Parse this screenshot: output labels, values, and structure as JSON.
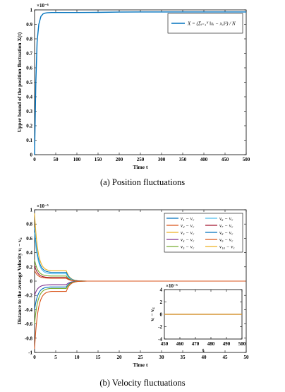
{
  "chart_data": [
    {
      "type": "line",
      "caption": "(a)  Position fluctuations",
      "xlabel": "Time t",
      "ylabel": "Upper bound of the position fluctuation X(t)",
      "exponent_label": "×10⁻⁶",
      "xlim": [
        0,
        500
      ],
      "ylim": [
        0,
        1
      ],
      "xticks": [
        "0",
        "50",
        "100",
        "150",
        "200",
        "250",
        "300",
        "350",
        "400",
        "450",
        "500"
      ],
      "yticks": [
        "0",
        "0.1",
        "0.2",
        "0.3",
        "0.4",
        "0.5",
        "0.6",
        "0.7",
        "0.8",
        "0.9",
        "1"
      ],
      "legend": {
        "placement": "top-right",
        "label": "X = (Σᵢ₌₁ᴺ ‖xᵢ − x꜀‖²) / N"
      },
      "series": [
        {
          "color": "#0072BD",
          "x": [
            0,
            3,
            6,
            10,
            15,
            20,
            25,
            30,
            40,
            60,
            100,
            150,
            200,
            250,
            300,
            400,
            500
          ],
          "y": [
            0.0,
            0.5,
            0.78,
            0.9,
            0.955,
            0.972,
            0.978,
            0.98,
            0.982,
            0.982,
            0.982,
            0.983,
            0.985,
            0.986,
            0.986,
            0.986,
            0.986
          ]
        }
      ]
    },
    {
      "type": "line",
      "caption": "(b)  Velocity fluctuations",
      "xlabel": "Time t",
      "ylabel": "Distance to the average Velocity vᵢ − v꜀",
      "exponent_label": "×10⁻⁵",
      "xlim": [
        0,
        50
      ],
      "ylim": [
        -1,
        1
      ],
      "xticks": [
        "0",
        "5",
        "10",
        "15",
        "20",
        "25",
        "30",
        "35",
        "40",
        "45",
        "50"
      ],
      "yticks": [
        "-1",
        "-0.8",
        "-0.6",
        "-0.4",
        "-0.2",
        "0",
        "0.2",
        "0.4",
        "0.6",
        "0.8",
        "1"
      ],
      "legend": {
        "placement": "top-right",
        "entries": [
          {
            "label": "v₁ − v꜀",
            "color": "#0072BD"
          },
          {
            "label": "v₆ − v꜀",
            "color": "#4DBEEE"
          },
          {
            "label": "v₂ − v꜀",
            "color": "#D95319"
          },
          {
            "label": "v₇ − v꜀",
            "color": "#A2142F"
          },
          {
            "label": "v₃ − v꜀",
            "color": "#EDB120"
          },
          {
            "label": "v₈ − v꜀",
            "color": "#0072BD"
          },
          {
            "label": "v₄ − v꜀",
            "color": "#7E2F8E"
          },
          {
            "label": "v₉ − v꜀",
            "color": "#D95319"
          },
          {
            "label": "v₅ − v꜀",
            "color": "#77AC30"
          },
          {
            "label": "v₁₀ − v꜀",
            "color": "#EDB120"
          }
        ]
      },
      "series": [
        {
          "color": "#EDB120",
          "y0": 0.95,
          "plateau": 0.14
        },
        {
          "color": "#0072BD",
          "y0": 0.75,
          "plateau": 0.12
        },
        {
          "color": "#4DBEEE",
          "y0": 0.68,
          "plateau": 0.1
        },
        {
          "color": "#77AC30",
          "y0": 0.3,
          "plateau": 0.07
        },
        {
          "color": "#A2142F",
          "y0": 0.22,
          "plateau": 0.05
        },
        {
          "color": "#D95319",
          "y0": 0.15,
          "plateau": 0.04
        },
        {
          "color": "#7E2F8E",
          "y0": -0.2,
          "plateau": -0.05
        },
        {
          "color": "#0072BD",
          "y0": -0.4,
          "plateau": -0.08
        },
        {
          "color": "#77AC30",
          "y0": -0.6,
          "plateau": -0.1
        },
        {
          "color": "#D95319",
          "y0": -0.95,
          "plateau": -0.14
        }
      ],
      "inset": {
        "exponent_label": "×10⁻⁵",
        "ylabel": "vᵢ − v꜀",
        "xlabel": "t",
        "xlim": [
          450,
          500
        ],
        "ylim": [
          -4,
          4
        ],
        "xticks": [
          "450",
          "460",
          "470",
          "480",
          "490",
          "500"
        ],
        "yticks": [
          "-4",
          "-2",
          "0",
          "2",
          "4"
        ],
        "value": 0
      }
    }
  ]
}
